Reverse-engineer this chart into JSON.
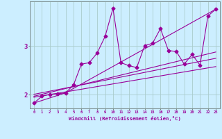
{
  "xlabel": "Windchill (Refroidissement éolien,°C)",
  "background_color": "#cceeff",
  "grid_color": "#aacccc",
  "line_color": "#990099",
  "xlim": [
    -0.5,
    23.5
  ],
  "ylim": [
    1.72,
    3.92
  ],
  "xticks": [
    0,
    1,
    2,
    3,
    4,
    5,
    6,
    7,
    8,
    9,
    10,
    11,
    12,
    13,
    14,
    15,
    16,
    17,
    18,
    19,
    20,
    21,
    22,
    23
  ],
  "yticks": [
    2,
    3
  ],
  "line1_x": [
    0,
    1,
    2,
    3,
    4,
    5,
    6,
    7,
    8,
    9,
    10,
    11,
    12,
    13,
    14,
    15,
    16,
    17,
    18,
    19,
    20,
    21,
    22,
    23
  ],
  "line1_y": [
    1.83,
    1.97,
    2.01,
    2.02,
    2.04,
    2.2,
    2.63,
    2.66,
    2.86,
    3.2,
    3.78,
    2.66,
    2.6,
    2.56,
    3.01,
    3.06,
    3.36,
    2.91,
    2.89,
    2.63,
    2.83,
    2.61,
    3.62,
    3.76
  ],
  "line2_x": [
    0,
    4,
    23
  ],
  "line2_y": [
    1.83,
    2.04,
    3.76
  ],
  "line3_x": [
    0,
    23
  ],
  "line3_y": [
    1.95,
    2.58
  ],
  "line4_x": [
    0,
    23
  ],
  "line4_y": [
    2.01,
    2.75
  ],
  "line5_x": [
    0,
    23
  ],
  "line5_y": [
    1.97,
    2.88
  ]
}
